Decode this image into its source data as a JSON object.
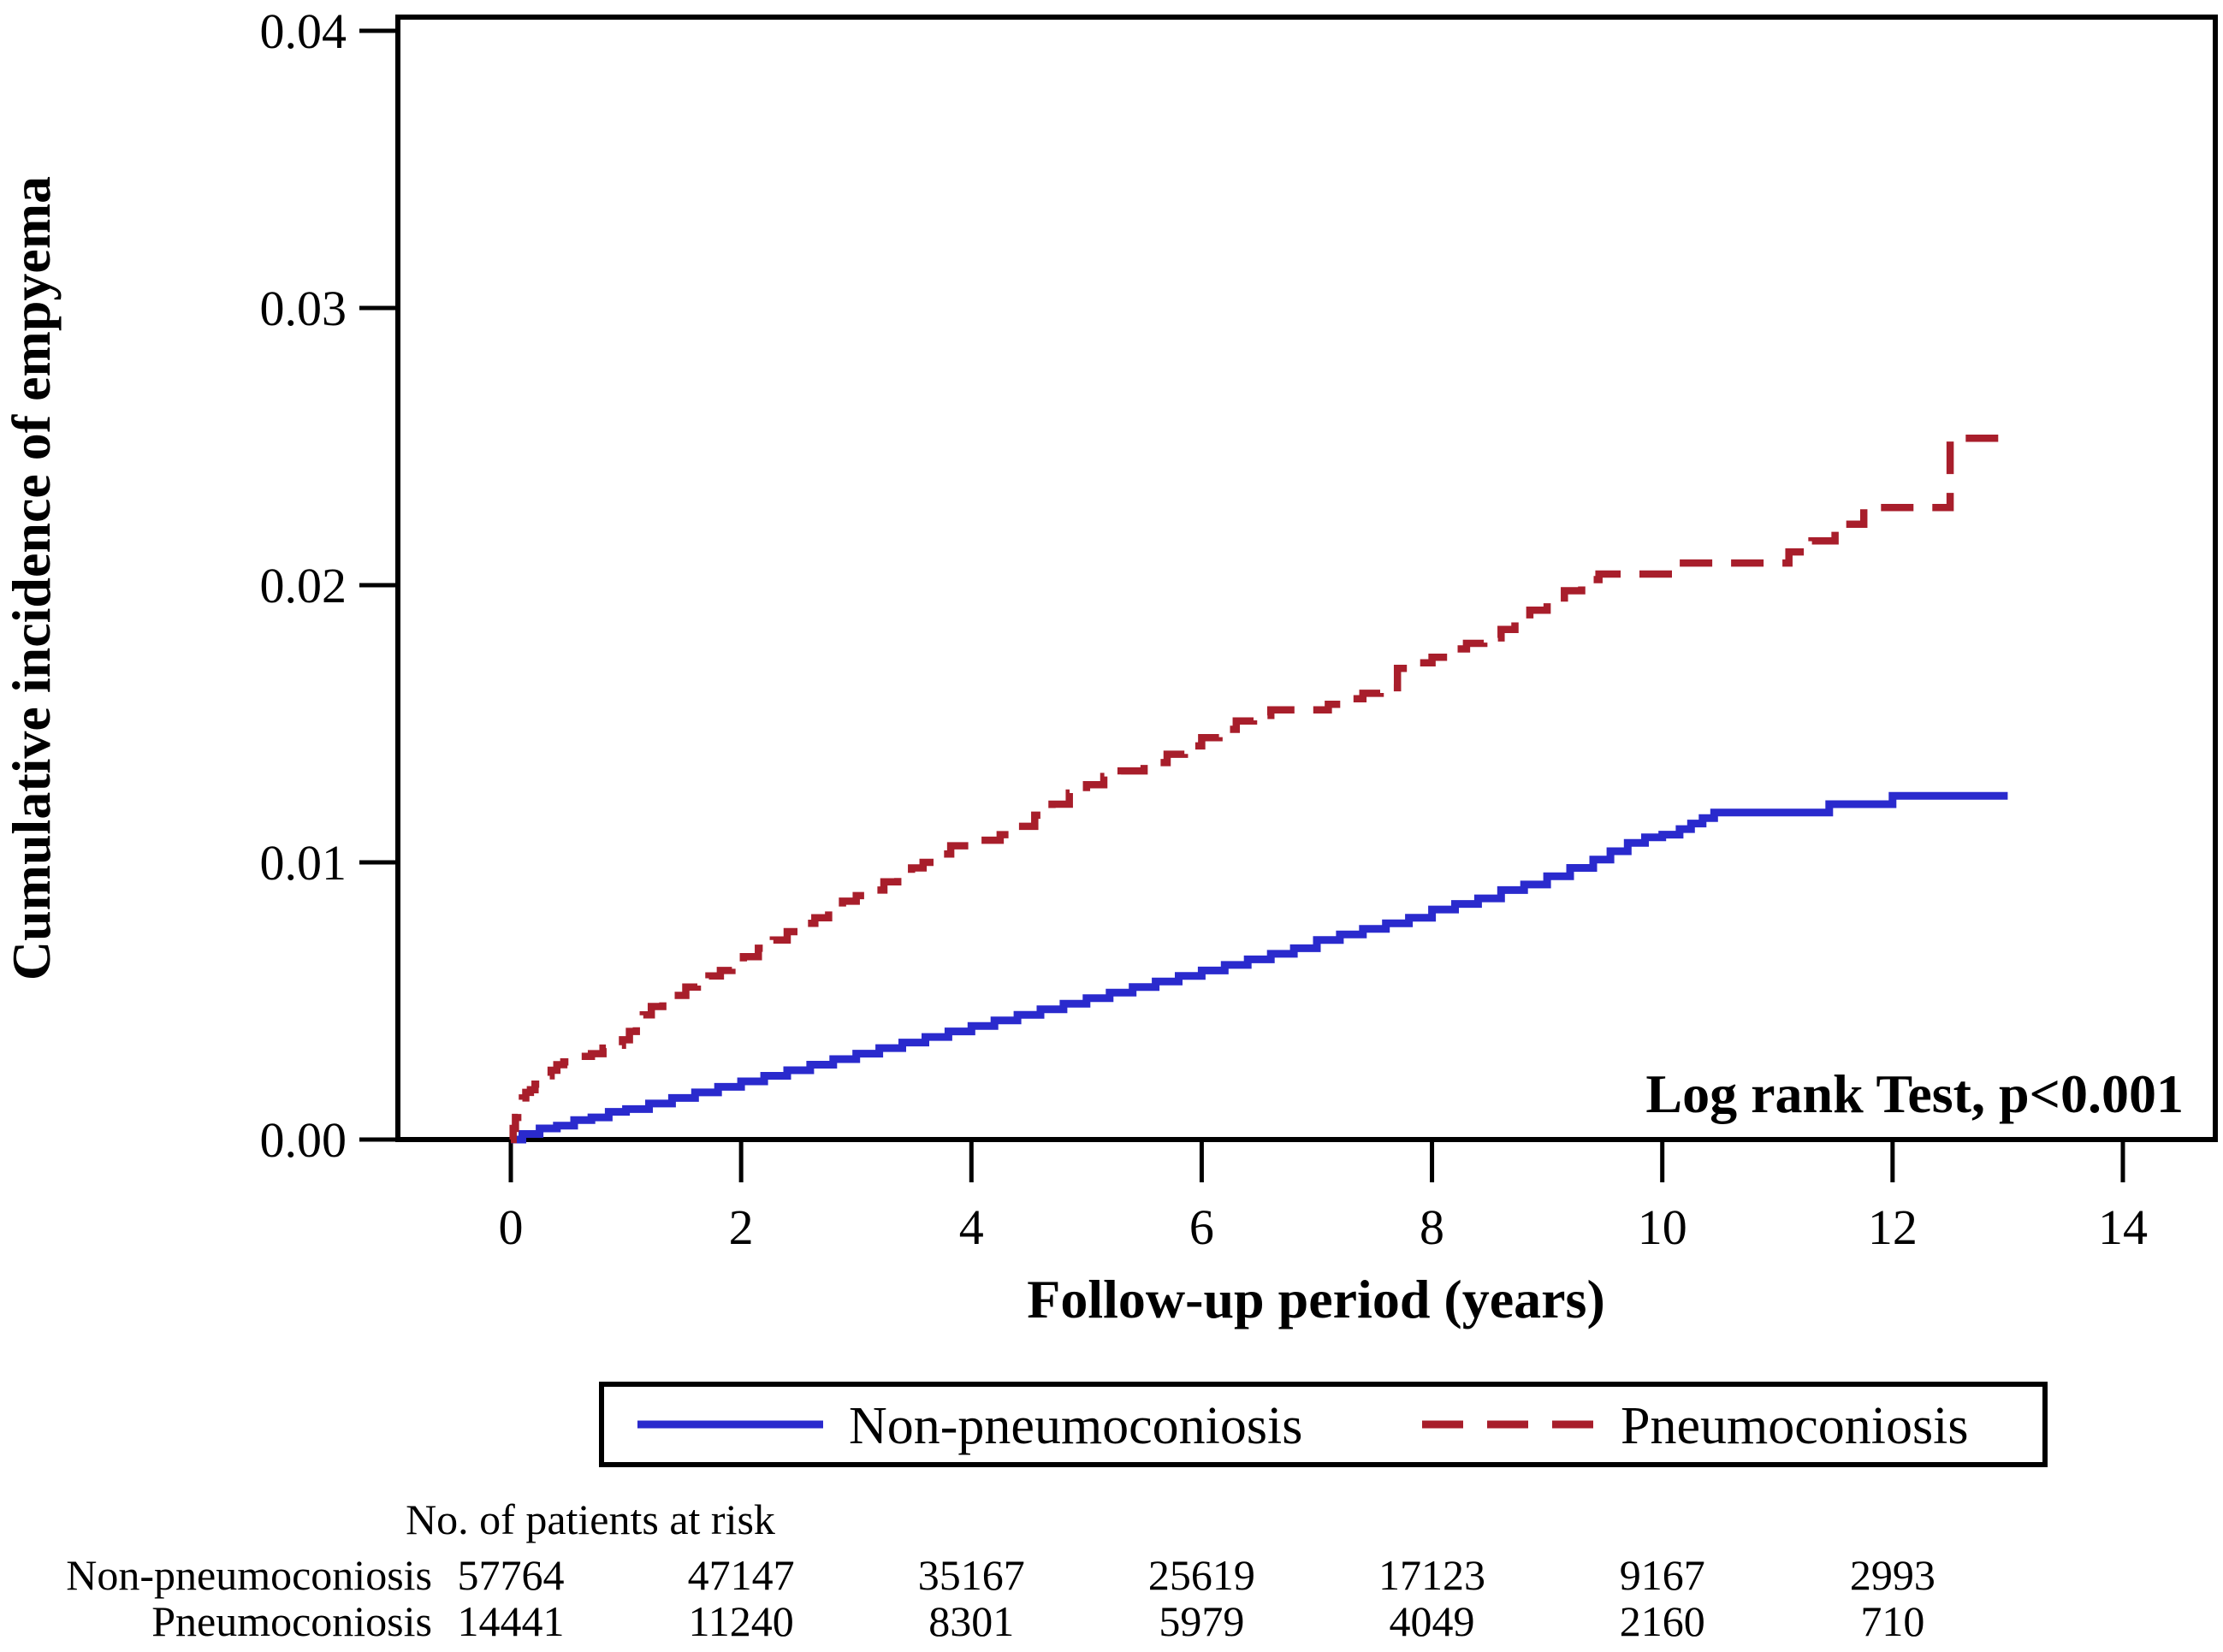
{
  "chart_data": {
    "type": "line",
    "subtype": "kaplan-meier-cumulative-incidence-step",
    "title": "",
    "ylabel": "Cumulative incidence of empyema",
    "xlabel": "Follow-up period (years)",
    "annotation": "Log rank Test, p<0.001",
    "xlim": [
      0,
      14
    ],
    "ylim": [
      0.0,
      0.04
    ],
    "grid": false,
    "legend_position": "bottom",
    "xticks": [
      {
        "value": 0,
        "label": "0"
      },
      {
        "value": 2,
        "label": "2"
      },
      {
        "value": 4,
        "label": "4"
      },
      {
        "value": 6,
        "label": "6"
      },
      {
        "value": 8,
        "label": "8"
      },
      {
        "value": 10,
        "label": "10"
      },
      {
        "value": 12,
        "label": "12"
      },
      {
        "value": 14,
        "label": "14"
      }
    ],
    "yticks": [
      {
        "value": 0.0,
        "label": "0.00"
      },
      {
        "value": 0.01,
        "label": "0.01"
      },
      {
        "value": 0.02,
        "label": "0.02"
      },
      {
        "value": 0.03,
        "label": "0.03"
      },
      {
        "value": 0.04,
        "label": "0.04"
      }
    ],
    "series": [
      {
        "name": "Non-pneumoconiosis",
        "color": "#2A2ACD",
        "dash": "solid",
        "steps": [
          [
            0,
            0
          ],
          [
            0.1,
            0.0002
          ],
          [
            0.25,
            0.0004
          ],
          [
            0.4,
            0.0005
          ],
          [
            0.55,
            0.0007
          ],
          [
            0.7,
            0.0008
          ],
          [
            0.85,
            0.001
          ],
          [
            1.0,
            0.0011
          ],
          [
            1.2,
            0.0013
          ],
          [
            1.4,
            0.0015
          ],
          [
            1.6,
            0.0017
          ],
          [
            1.8,
            0.0019
          ],
          [
            2.0,
            0.0021
          ],
          [
            2.2,
            0.0023
          ],
          [
            2.4,
            0.0025
          ],
          [
            2.6,
            0.0027
          ],
          [
            2.8,
            0.0029
          ],
          [
            3.0,
            0.0031
          ],
          [
            3.2,
            0.0033
          ],
          [
            3.4,
            0.0035
          ],
          [
            3.6,
            0.0037
          ],
          [
            3.8,
            0.0039
          ],
          [
            4.0,
            0.0041
          ],
          [
            4.2,
            0.0043
          ],
          [
            4.4,
            0.0045
          ],
          [
            4.6,
            0.0047
          ],
          [
            4.8,
            0.0049
          ],
          [
            5.0,
            0.0051
          ],
          [
            5.2,
            0.0053
          ],
          [
            5.4,
            0.0055
          ],
          [
            5.6,
            0.0057
          ],
          [
            5.8,
            0.0059
          ],
          [
            6.0,
            0.0061
          ],
          [
            6.2,
            0.0063
          ],
          [
            6.4,
            0.0065
          ],
          [
            6.6,
            0.0067
          ],
          [
            6.8,
            0.0069
          ],
          [
            7.0,
            0.0072
          ],
          [
            7.2,
            0.0074
          ],
          [
            7.4,
            0.0076
          ],
          [
            7.6,
            0.0078
          ],
          [
            7.8,
            0.008
          ],
          [
            8.0,
            0.0083
          ],
          [
            8.2,
            0.0085
          ],
          [
            8.4,
            0.0087
          ],
          [
            8.6,
            0.009
          ],
          [
            8.8,
            0.0092
          ],
          [
            9.0,
            0.0095
          ],
          [
            9.2,
            0.0098
          ],
          [
            9.4,
            0.0101
          ],
          [
            9.55,
            0.0104
          ],
          [
            9.7,
            0.0107
          ],
          [
            9.85,
            0.0109
          ],
          [
            10.0,
            0.011
          ],
          [
            10.15,
            0.0112
          ],
          [
            10.25,
            0.0114
          ],
          [
            10.35,
            0.0116
          ],
          [
            10.45,
            0.0118
          ],
          [
            11.45,
            0.0121
          ],
          [
            12.0,
            0.0124
          ],
          [
            13.0,
            0.0124
          ]
        ]
      },
      {
        "name": "Pneumoconiosis",
        "color": "#A81E2B",
        "dash": "dashed",
        "steps": [
          [
            0,
            0
          ],
          [
            0.02,
            0.0004
          ],
          [
            0.04,
            0.0008
          ],
          [
            0.06,
            0.0011
          ],
          [
            0.08,
            0.0013
          ],
          [
            0.1,
            0.0015
          ],
          [
            0.13,
            0.0017
          ],
          [
            0.17,
            0.0018
          ],
          [
            0.21,
            0.002
          ],
          [
            0.25,
            0.0021
          ],
          [
            0.3,
            0.0023
          ],
          [
            0.35,
            0.0025
          ],
          [
            0.4,
            0.0027
          ],
          [
            0.46,
            0.0028
          ],
          [
            0.52,
            0.0029
          ],
          [
            0.6,
            0.003
          ],
          [
            0.7,
            0.0031
          ],
          [
            0.8,
            0.0033
          ],
          [
            0.9,
            0.0034
          ],
          [
            0.97,
            0.0036
          ],
          [
            1.03,
            0.0039
          ],
          [
            1.09,
            0.0042
          ],
          [
            1.15,
            0.0045
          ],
          [
            1.22,
            0.0048
          ],
          [
            1.32,
            0.005
          ],
          [
            1.42,
            0.0052
          ],
          [
            1.52,
            0.0055
          ],
          [
            1.62,
            0.0057
          ],
          [
            1.72,
            0.0059
          ],
          [
            1.82,
            0.0061
          ],
          [
            1.92,
            0.0064
          ],
          [
            2.02,
            0.0066
          ],
          [
            2.15,
            0.0069
          ],
          [
            2.28,
            0.0072
          ],
          [
            2.4,
            0.0075
          ],
          [
            2.52,
            0.0078
          ],
          [
            2.64,
            0.008
          ],
          [
            2.76,
            0.0083
          ],
          [
            2.88,
            0.0086
          ],
          [
            3.0,
            0.0088
          ],
          [
            3.12,
            0.009
          ],
          [
            3.24,
            0.0093
          ],
          [
            3.36,
            0.0096
          ],
          [
            3.48,
            0.0098
          ],
          [
            3.58,
            0.01
          ],
          [
            3.7,
            0.0103
          ],
          [
            3.82,
            0.0106
          ],
          [
            4.0,
            0.0108
          ],
          [
            4.25,
            0.011
          ],
          [
            4.4,
            0.0113
          ],
          [
            4.55,
            0.0117
          ],
          [
            4.7,
            0.0121
          ],
          [
            4.85,
            0.0125
          ],
          [
            5.0,
            0.0128
          ],
          [
            5.15,
            0.0131
          ],
          [
            5.3,
            0.0133
          ],
          [
            5.5,
            0.0136
          ],
          [
            5.7,
            0.0139
          ],
          [
            5.85,
            0.0142
          ],
          [
            6.0,
            0.0145
          ],
          [
            6.15,
            0.0148
          ],
          [
            6.3,
            0.0151
          ],
          [
            6.45,
            0.0153
          ],
          [
            6.6,
            0.0155
          ],
          [
            7.1,
            0.0157
          ],
          [
            7.25,
            0.0159
          ],
          [
            7.4,
            0.0161
          ],
          [
            7.55,
            0.0163
          ],
          [
            7.7,
            0.017
          ],
          [
            7.85,
            0.0172
          ],
          [
            8.0,
            0.0174
          ],
          [
            8.15,
            0.0177
          ],
          [
            8.3,
            0.0179
          ],
          [
            8.45,
            0.0181
          ],
          [
            8.6,
            0.0184
          ],
          [
            8.72,
            0.0188
          ],
          [
            8.85,
            0.0191
          ],
          [
            9.0,
            0.0194
          ],
          [
            9.15,
            0.0198
          ],
          [
            9.3,
            0.0202
          ],
          [
            9.45,
            0.0204
          ],
          [
            10.15,
            0.0208
          ],
          [
            11.1,
            0.0212
          ],
          [
            11.3,
            0.0216
          ],
          [
            11.5,
            0.0222
          ],
          [
            11.75,
            0.0228
          ],
          [
            12.5,
            0.0253
          ],
          [
            13.0,
            0.0253
          ]
        ]
      }
    ],
    "at_risk": {
      "label": "No. of patients at risk",
      "times": [
        0,
        2,
        4,
        6,
        8,
        10,
        12
      ],
      "rows": [
        {
          "name": "Non-pneumoconiosis",
          "color": "#2A2ACD",
          "values": [
            "57764",
            "47147",
            "35167",
            "25619",
            "17123",
            "9167",
            "2993"
          ]
        },
        {
          "name": "Pneumoconiosis",
          "color": "#A81E2B",
          "values": [
            "14441",
            "11240",
            "8301",
            "5979",
            "4049",
            "2160",
            "710"
          ]
        }
      ]
    }
  }
}
